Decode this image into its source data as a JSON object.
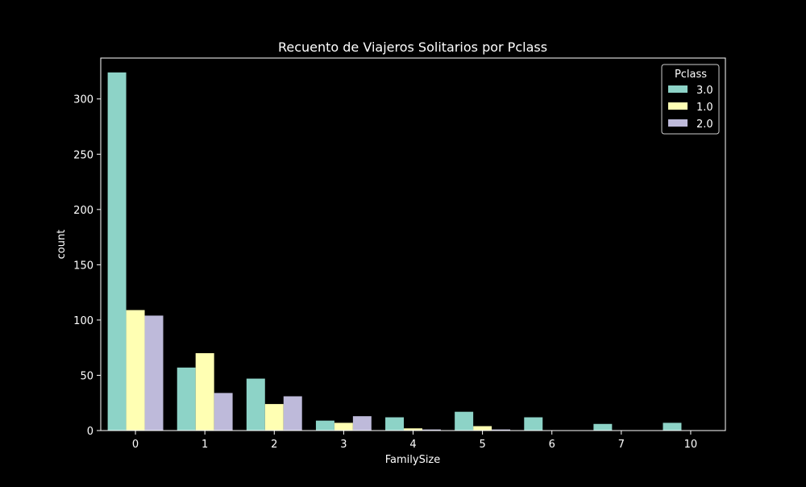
{
  "chart_data": {
    "type": "bar",
    "title": "Recuento de Viajeros Solitarios por Pclass",
    "xlabel": "FamilySize",
    "ylabel": "count",
    "categories": [
      "0",
      "1",
      "2",
      "3",
      "4",
      "5",
      "6",
      "7",
      "10"
    ],
    "ylim": [
      0,
      337
    ],
    "yticks": [
      0,
      50,
      100,
      150,
      200,
      250,
      300
    ],
    "grid": false,
    "legend": {
      "title": "Pclass",
      "position": "top-right"
    },
    "series": [
      {
        "name": "3.0",
        "color": "#8dd3c7",
        "values": [
          324,
          57,
          47,
          9,
          12,
          17,
          12,
          6,
          7
        ]
      },
      {
        "name": "1.0",
        "color": "#ffffb3",
        "values": [
          109,
          70,
          24,
          7,
          2,
          4,
          0,
          0,
          0
        ]
      },
      {
        "name": "2.0",
        "color": "#bebada",
        "values": [
          104,
          34,
          31,
          13,
          1,
          1,
          0,
          0,
          0
        ]
      }
    ]
  }
}
